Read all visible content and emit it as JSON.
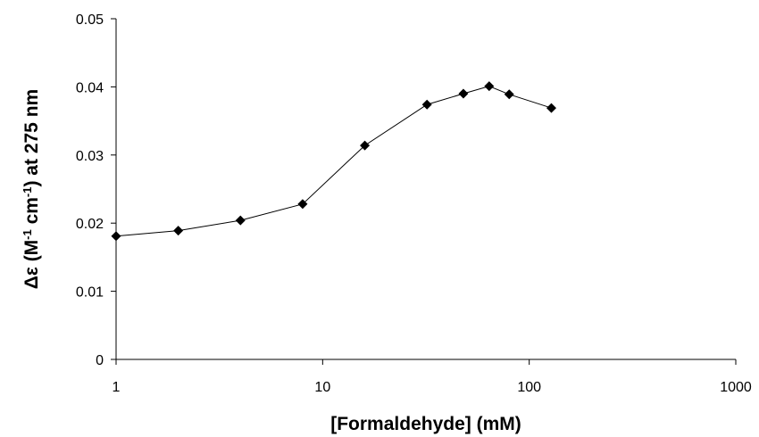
{
  "chart_data": {
    "type": "line",
    "title": "",
    "xlabel": "[Formaldehyde] (mM)",
    "ylabel": {
      "prefix": "Δε (M",
      "sup1": "-1",
      "middle": " cm",
      "sup2": "-1",
      "suffix": ") at 275 nm"
    },
    "xscale": "log",
    "xlim": [
      1,
      1000
    ],
    "ylim": [
      0,
      0.05
    ],
    "x_ticks": [
      1,
      10,
      100,
      1000
    ],
    "x_tick_labels": [
      "1",
      "10",
      "100",
      "1000"
    ],
    "y_ticks": [
      0,
      0.01,
      0.02,
      0.03,
      0.04,
      0.05
    ],
    "y_tick_labels": [
      "0",
      "0.01",
      "0.02",
      "0.03",
      "0.04",
      "0.05"
    ],
    "grid": false,
    "legend": "none",
    "marker": "diamond",
    "colors": {
      "line": "#000000",
      "marker": "#000000",
      "axis": "#000000"
    },
    "series": [
      {
        "x": [
          1,
          2,
          4,
          8,
          16,
          32,
          48,
          64,
          80,
          128
        ],
        "y": [
          0.0181,
          0.0189,
          0.0204,
          0.0228,
          0.0314,
          0.0374,
          0.039,
          0.0401,
          0.0389,
          0.0369
        ]
      }
    ]
  }
}
